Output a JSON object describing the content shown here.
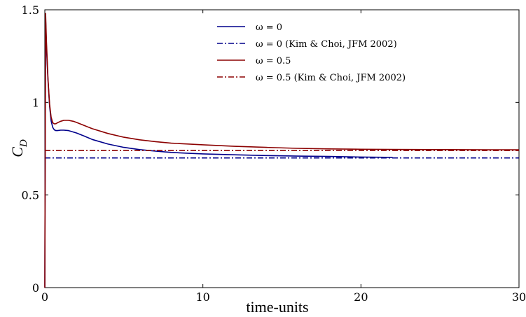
{
  "chart_data": {
    "type": "line",
    "xlabel": "time-units",
    "ylabel_main": "C",
    "ylabel_sub": "D",
    "xlim": [
      0,
      30
    ],
    "ylim": [
      0,
      1.5
    ],
    "x_ticks": [
      "0",
      "10",
      "20",
      "30"
    ],
    "y_ticks": [
      "0",
      "0.5",
      "1",
      "1.5"
    ],
    "grid": false,
    "legend_position": "top-right",
    "series": [
      {
        "name": "ω = 0",
        "color": "#00008b",
        "style": "solid",
        "x": [
          0,
          0.05,
          0.1,
          0.2,
          0.3,
          0.4,
          0.5,
          0.6,
          0.7,
          0.8,
          1.0,
          1.2,
          1.5,
          2,
          2.5,
          3,
          4,
          5,
          6,
          7,
          8,
          9,
          10,
          12,
          14,
          16,
          18,
          20,
          22
        ],
        "y": [
          0,
          1.45,
          1.3,
          1.12,
          0.98,
          0.9,
          0.865,
          0.852,
          0.848,
          0.848,
          0.85,
          0.85,
          0.848,
          0.835,
          0.818,
          0.8,
          0.775,
          0.757,
          0.745,
          0.737,
          0.73,
          0.726,
          0.722,
          0.717,
          0.713,
          0.71,
          0.708,
          0.705,
          0.703
        ]
      },
      {
        "name": "ω = 0 (Kim & Choi, JFM 2002)",
        "color": "#00008b",
        "style": "dashdot",
        "x": [
          0,
          30
        ],
        "y": [
          0.7,
          0.7
        ]
      },
      {
        "name": "ω = 0.5",
        "color": "#8b0000",
        "style": "solid",
        "x": [
          0,
          0.05,
          0.1,
          0.2,
          0.3,
          0.4,
          0.5,
          0.6,
          0.7,
          0.8,
          1.0,
          1.2,
          1.5,
          1.8,
          2,
          2.5,
          3,
          4,
          5,
          6,
          7,
          8,
          10,
          12,
          14,
          16,
          18,
          20,
          22,
          25,
          28,
          30
        ],
        "y": [
          0,
          1.48,
          1.33,
          1.13,
          0.99,
          0.92,
          0.89,
          0.884,
          0.885,
          0.89,
          0.898,
          0.903,
          0.903,
          0.898,
          0.892,
          0.875,
          0.858,
          0.832,
          0.812,
          0.798,
          0.788,
          0.78,
          0.771,
          0.763,
          0.757,
          0.752,
          0.749,
          0.747,
          0.746,
          0.745,
          0.744,
          0.744
        ]
      },
      {
        "name": "ω = 0.5 (Kim & Choi, JFM 2002)",
        "color": "#8b0000",
        "style": "dashdot",
        "x": [
          0,
          30
        ],
        "y": [
          0.74,
          0.74
        ]
      }
    ]
  }
}
